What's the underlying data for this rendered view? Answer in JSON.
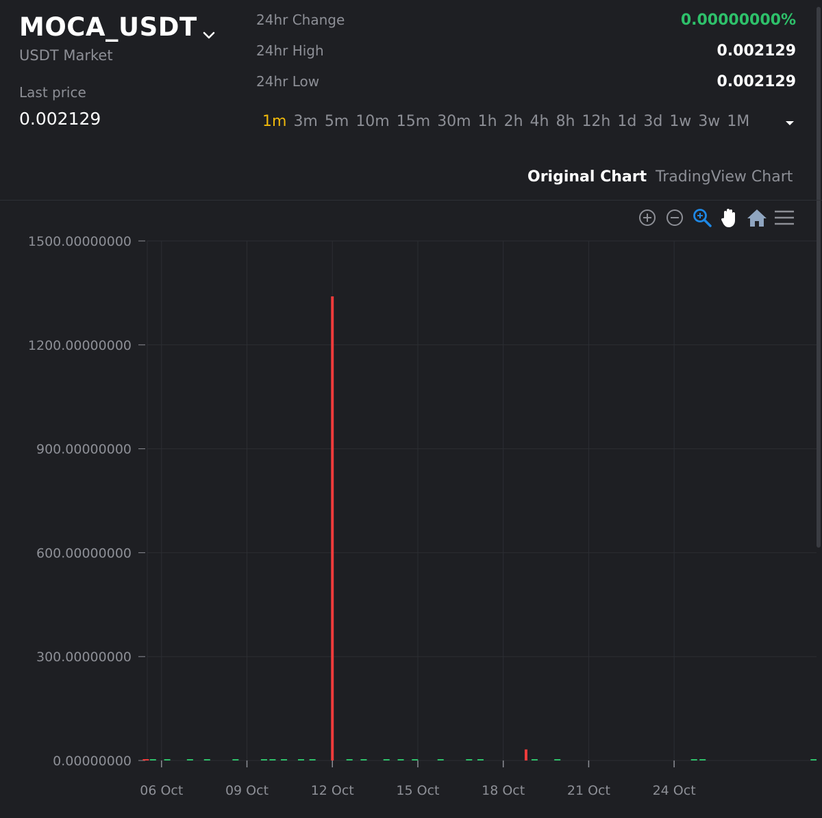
{
  "header": {
    "pair": "MOCA_USDT",
    "market": "USDT Market",
    "last_price_label": "Last price",
    "last_price": "0.002129"
  },
  "stats": {
    "change_label": "24hr Change",
    "change_value": "0.00000000%",
    "high_label": "24hr High",
    "high_value": "0.002129",
    "low_label": "24hr Low",
    "low_value": "0.002129"
  },
  "intervals": [
    "1m",
    "3m",
    "5m",
    "10m",
    "15m",
    "30m",
    "1h",
    "2h",
    "4h",
    "8h",
    "12h",
    "1d",
    "3d",
    "1w",
    "3w",
    "1M"
  ],
  "active_interval": "1m",
  "chart_tabs": {
    "original": "Original Chart",
    "tradingview": "TradingView Chart",
    "active": "original"
  },
  "toolbar": [
    "zoom-in-icon",
    "zoom-out-icon",
    "selection-zoom-icon",
    "pan-hand-icon",
    "home-icon",
    "menu-icon"
  ],
  "colors": {
    "up": "#2ec06a",
    "down": "#ef3b3b",
    "accent": "#f0b90b",
    "zoom_active": "#1e88e5",
    "background": "#1e1f23"
  },
  "chart_data": {
    "type": "bar",
    "title": "",
    "xlabel": "",
    "ylabel": "",
    "ylim": [
      0,
      1500
    ],
    "yticks": [
      "1500.00000000",
      "1200.00000000",
      "900.00000000",
      "600.00000000",
      "300.00000000",
      "0.00000000"
    ],
    "ytick_values": [
      1500,
      1200,
      900,
      600,
      300,
      0
    ],
    "x_range_days": [
      5.5,
      29.0
    ],
    "xticks": [
      {
        "day": 6,
        "label": "06 Oct"
      },
      {
        "day": 9,
        "label": "09 Oct"
      },
      {
        "day": 12,
        "label": "12 Oct"
      },
      {
        "day": 15,
        "label": "15 Oct"
      },
      {
        "day": 18,
        "label": "18 Oct"
      },
      {
        "day": 21,
        "label": "21 Oct"
      },
      {
        "day": 24,
        "label": "24 Oct"
      }
    ],
    "grid": true,
    "series": [
      {
        "direction": "down",
        "points": [
          {
            "day": 5.45,
            "value": 3
          },
          {
            "day": 12.0,
            "value": 1340
          },
          {
            "day": 18.8,
            "value": 32
          }
        ]
      },
      {
        "direction": "up",
        "points": [
          {
            "day": 5.7,
            "value": 2
          },
          {
            "day": 6.2,
            "value": 1
          },
          {
            "day": 7.0,
            "value": 2
          },
          {
            "day": 7.6,
            "value": 1
          },
          {
            "day": 8.6,
            "value": 1
          },
          {
            "day": 9.6,
            "value": 3
          },
          {
            "day": 9.9,
            "value": 2
          },
          {
            "day": 10.3,
            "value": 2
          },
          {
            "day": 10.9,
            "value": 2
          },
          {
            "day": 11.3,
            "value": 2
          },
          {
            "day": 12.6,
            "value": 2
          },
          {
            "day": 13.1,
            "value": 2
          },
          {
            "day": 13.9,
            "value": 2
          },
          {
            "day": 14.4,
            "value": 1
          },
          {
            "day": 14.9,
            "value": 2
          },
          {
            "day": 15.8,
            "value": 1
          },
          {
            "day": 16.8,
            "value": 2
          },
          {
            "day": 17.2,
            "value": 1
          },
          {
            "day": 19.1,
            "value": 2
          },
          {
            "day": 19.9,
            "value": 2
          },
          {
            "day": 24.7,
            "value": 2
          },
          {
            "day": 25.0,
            "value": 1
          },
          {
            "day": 28.9,
            "value": 1
          }
        ]
      }
    ]
  }
}
